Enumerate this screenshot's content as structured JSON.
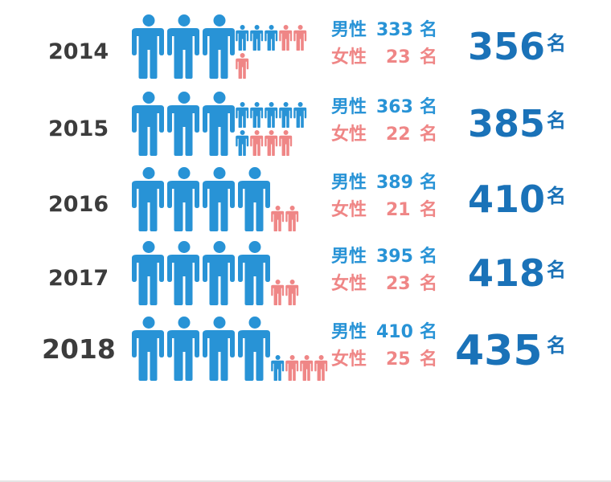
{
  "chart_data": {
    "type": "pictogram",
    "title": "",
    "unit_label": "名",
    "male_label": "男性",
    "female_label": "女性",
    "colors": {
      "male": "#2893d6",
      "female": "#ef8686",
      "total": "#1a72b8",
      "year": "#3c3c3c"
    },
    "rows": [
      {
        "year": "2014",
        "male": 333,
        "female": 23,
        "total": 356
      },
      {
        "year": "2015",
        "male": 363,
        "female": 22,
        "total": 385
      },
      {
        "year": "2016",
        "male": 389,
        "female": 21,
        "total": 410
      },
      {
        "year": "2017",
        "male": 395,
        "female": 23,
        "total": 418
      },
      {
        "year": "2018",
        "male": 410,
        "female": 25,
        "total": 435
      }
    ]
  }
}
